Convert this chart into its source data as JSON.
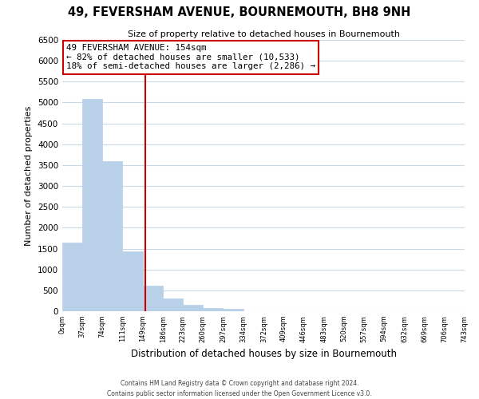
{
  "title": "49, FEVERSHAM AVENUE, BOURNEMOUTH, BH8 9NH",
  "subtitle": "Size of property relative to detached houses in Bournemouth",
  "xlabel": "Distribution of detached houses by size in Bournemouth",
  "ylabel": "Number of detached properties",
  "bar_edges": [
    0,
    37,
    74,
    111,
    149,
    186,
    223,
    260,
    297,
    334,
    372,
    409,
    446,
    483,
    520,
    557,
    594,
    632,
    669,
    706,
    743
  ],
  "bar_heights": [
    1650,
    5080,
    3600,
    1430,
    610,
    300,
    150,
    70,
    50,
    0,
    0,
    0,
    0,
    0,
    0,
    0,
    0,
    0,
    0,
    0
  ],
  "bar_color": "#b8d0e8",
  "bar_edgecolor": "#b8d0e8",
  "property_line_x": 154,
  "property_line_color": "#cc0000",
  "ylim": [
    0,
    6500
  ],
  "yticks": [
    0,
    500,
    1000,
    1500,
    2000,
    2500,
    3000,
    3500,
    4000,
    4500,
    5000,
    5500,
    6000,
    6500
  ],
  "xtick_labels": [
    "0sqm",
    "37sqm",
    "74sqm",
    "111sqm",
    "149sqm",
    "186sqm",
    "223sqm",
    "260sqm",
    "297sqm",
    "334sqm",
    "372sqm",
    "409sqm",
    "446sqm",
    "483sqm",
    "520sqm",
    "557sqm",
    "594sqm",
    "632sqm",
    "669sqm",
    "706sqm",
    "743sqm"
  ],
  "annotation_title": "49 FEVERSHAM AVENUE: 154sqm",
  "annotation_line1": "← 82% of detached houses are smaller (10,533)",
  "annotation_line2": "18% of semi-detached houses are larger (2,286) →",
  "annotation_box_color": "#ffffff",
  "annotation_box_edgecolor": "#cc0000",
  "footer1": "Contains HM Land Registry data © Crown copyright and database right 2024.",
  "footer2": "Contains public sector information licensed under the Open Government Licence v3.0.",
  "background_color": "#ffffff",
  "grid_color": "#c8d8e8"
}
